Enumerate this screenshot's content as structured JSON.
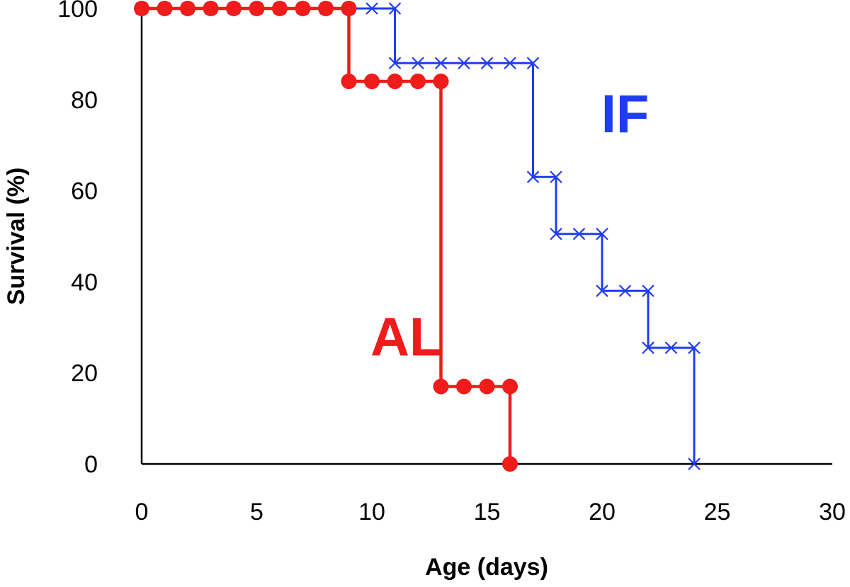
{
  "chart_data": {
    "type": "line",
    "step": true,
    "title": "",
    "xlabel": "Age (days)",
    "ylabel": "Survival (%)",
    "xlim": [
      0,
      30
    ],
    "ylim": [
      0,
      100
    ],
    "xticks": [
      0,
      5,
      10,
      15,
      20,
      25,
      30
    ],
    "yticks": [
      0,
      20,
      40,
      60,
      80,
      100
    ],
    "grid": false,
    "series": [
      {
        "name": "IF",
        "color": "#1f3cf5",
        "marker": "x",
        "label_text": "IF",
        "label_position": [
          21,
          77
        ],
        "x": [
          0,
          1,
          2,
          3,
          4,
          5,
          6,
          7,
          8,
          9,
          10,
          11,
          11,
          12,
          13,
          14,
          15,
          16,
          17,
          17,
          18,
          18,
          19,
          20,
          20,
          21,
          22,
          22,
          23,
          24,
          24
        ],
        "y": [
          100,
          100,
          100,
          100,
          100,
          100,
          100,
          100,
          100,
          100,
          100,
          100,
          88,
          88,
          88,
          88,
          88,
          88,
          88,
          63,
          63,
          50.5,
          50.5,
          50.5,
          38,
          38,
          38,
          25.5,
          25.5,
          25.5,
          0
        ]
      },
      {
        "name": "AL",
        "color": "#f01b1b",
        "marker": "o",
        "label_text": "AL",
        "label_position": [
          11.5,
          28
        ],
        "x": [
          0,
          1,
          2,
          3,
          4,
          5,
          6,
          7,
          8,
          9,
          9,
          10,
          11,
          12,
          13,
          13,
          14,
          15,
          16,
          16
        ],
        "y": [
          100,
          100,
          100,
          100,
          100,
          100,
          100,
          100,
          100,
          100,
          84,
          84,
          84,
          84,
          84,
          17,
          17,
          17,
          17,
          0
        ]
      }
    ]
  }
}
